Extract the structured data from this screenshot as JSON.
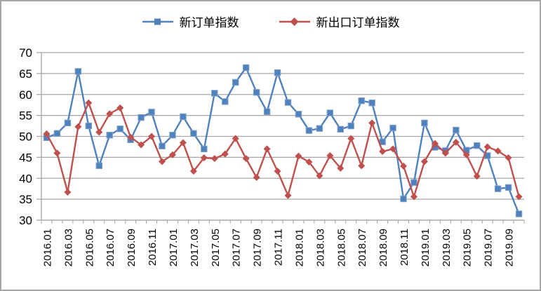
{
  "chart_data": {
    "type": "line",
    "title": "",
    "x": [
      "2016.01",
      "2016.02",
      "2016.03",
      "2016.04",
      "2016.05",
      "2016.06",
      "2016.07",
      "2016.08",
      "2016.09",
      "2016.10",
      "2016.11",
      "2016.12",
      "2017.01",
      "2017.02",
      "2017.03",
      "2017.04",
      "2017.05",
      "2017.06",
      "2017.07",
      "2017.08",
      "2017.09",
      "2017.10",
      "2017.11",
      "2017.12",
      "2018.01",
      "2018.02",
      "2018.03",
      "2018.04",
      "2018.05",
      "2018.06",
      "2018.07",
      "2018.08",
      "2018.09",
      "2018.10",
      "2018.11",
      "2018.12",
      "2019.01",
      "2019.02",
      "2019.03",
      "2019.04",
      "2019.05",
      "2019.06",
      "2019.07",
      "2019.08",
      "2019.09",
      "2019.10"
    ],
    "x_axis_labels_shown": [
      "2016.01",
      "2016.03",
      "2016.05",
      "2016.07",
      "2016.09",
      "2016.11",
      "2017.01",
      "2017.03",
      "2017.05",
      "2017.07",
      "2017.09",
      "2017.11",
      "2018.01",
      "2018.03",
      "2018.05",
      "2018.07",
      "2018.09",
      "2018.11",
      "2019.01",
      "2019.03",
      "2019.05",
      "2019.07",
      "2019.09"
    ],
    "series": [
      {
        "name": "新订单指数",
        "color": "#4F81BD",
        "marker": "square",
        "values": [
          49.7,
          50.7,
          53.2,
          65.5,
          52.5,
          43.0,
          50.3,
          51.8,
          49.2,
          54.5,
          55.8,
          47.7,
          50.3,
          54.7,
          50.7,
          47.0,
          60.3,
          58.3,
          62.9,
          66.4,
          60.5,
          55.9,
          65.2,
          58.1,
          55.3,
          51.4,
          51.9,
          55.6,
          51.7,
          52.5,
          58.5,
          58.0,
          48.7,
          52.0,
          35.1,
          39.0,
          53.2,
          47.4,
          46.6,
          51.5,
          46.7,
          47.8,
          45.4,
          37.5,
          37.8,
          31.5
        ]
      },
      {
        "name": "新出口订单指数",
        "color": "#C0504D",
        "marker": "diamond",
        "values": [
          50.6,
          46.0,
          36.7,
          52.3,
          58.0,
          51.0,
          55.4,
          56.8,
          49.8,
          48.0,
          50.0,
          44.0,
          45.6,
          48.5,
          41.7,
          44.9,
          44.7,
          45.8,
          49.5,
          44.7,
          40.2,
          47.0,
          41.7,
          35.9,
          45.3,
          43.9,
          40.6,
          45.4,
          42.4,
          49.5,
          43.0,
          53.2,
          46.4,
          47.0,
          42.9,
          35.6,
          44.0,
          48.3,
          46.0,
          48.6,
          45.6,
          40.5,
          47.5,
          46.5,
          44.9,
          35.6
        ]
      }
    ],
    "ylim": [
      30,
      70
    ],
    "y_ticks": [
      30,
      35,
      40,
      45,
      50,
      55,
      60,
      65,
      70
    ],
    "grid": "horizontal",
    "legend_position": "top",
    "axis_color": "#a6a6a6",
    "gridline_color": "#a6a6a6",
    "label_color": "#000000"
  }
}
